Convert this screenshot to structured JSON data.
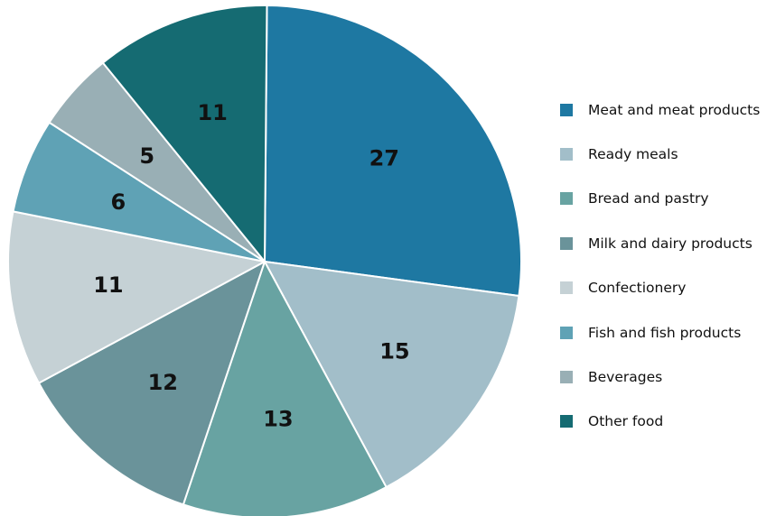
{
  "chart_data": {
    "type": "pie",
    "start_angle_deg": 0.5,
    "direction": "clockwise",
    "slices": [
      {
        "category": "Meat and meat products",
        "value": 27,
        "label": "27",
        "color": "#1e78a2"
      },
      {
        "category": "Ready meals",
        "value": 15,
        "label": "15",
        "color": "#a2bec9"
      },
      {
        "category": "Bread and pastry",
        "value": 13,
        "label": "13",
        "color": "#68a3a2"
      },
      {
        "category": "Milk and dairy products",
        "value": 12,
        "label": "12",
        "color": "#6a939a"
      },
      {
        "category": "Confectionery",
        "value": 11,
        "label": "11",
        "color": "#c5d1d5"
      },
      {
        "category": "Fish and fish products",
        "value": 6,
        "label": "6",
        "color": "#5fa2b5"
      },
      {
        "category": "Beverages",
        "value": 5,
        "label": "5",
        "color": "#99afb5"
      },
      {
        "category": "Other food",
        "value": 11,
        "label": "11",
        "color": "#156b72"
      }
    ],
    "legend_position": "right"
  }
}
